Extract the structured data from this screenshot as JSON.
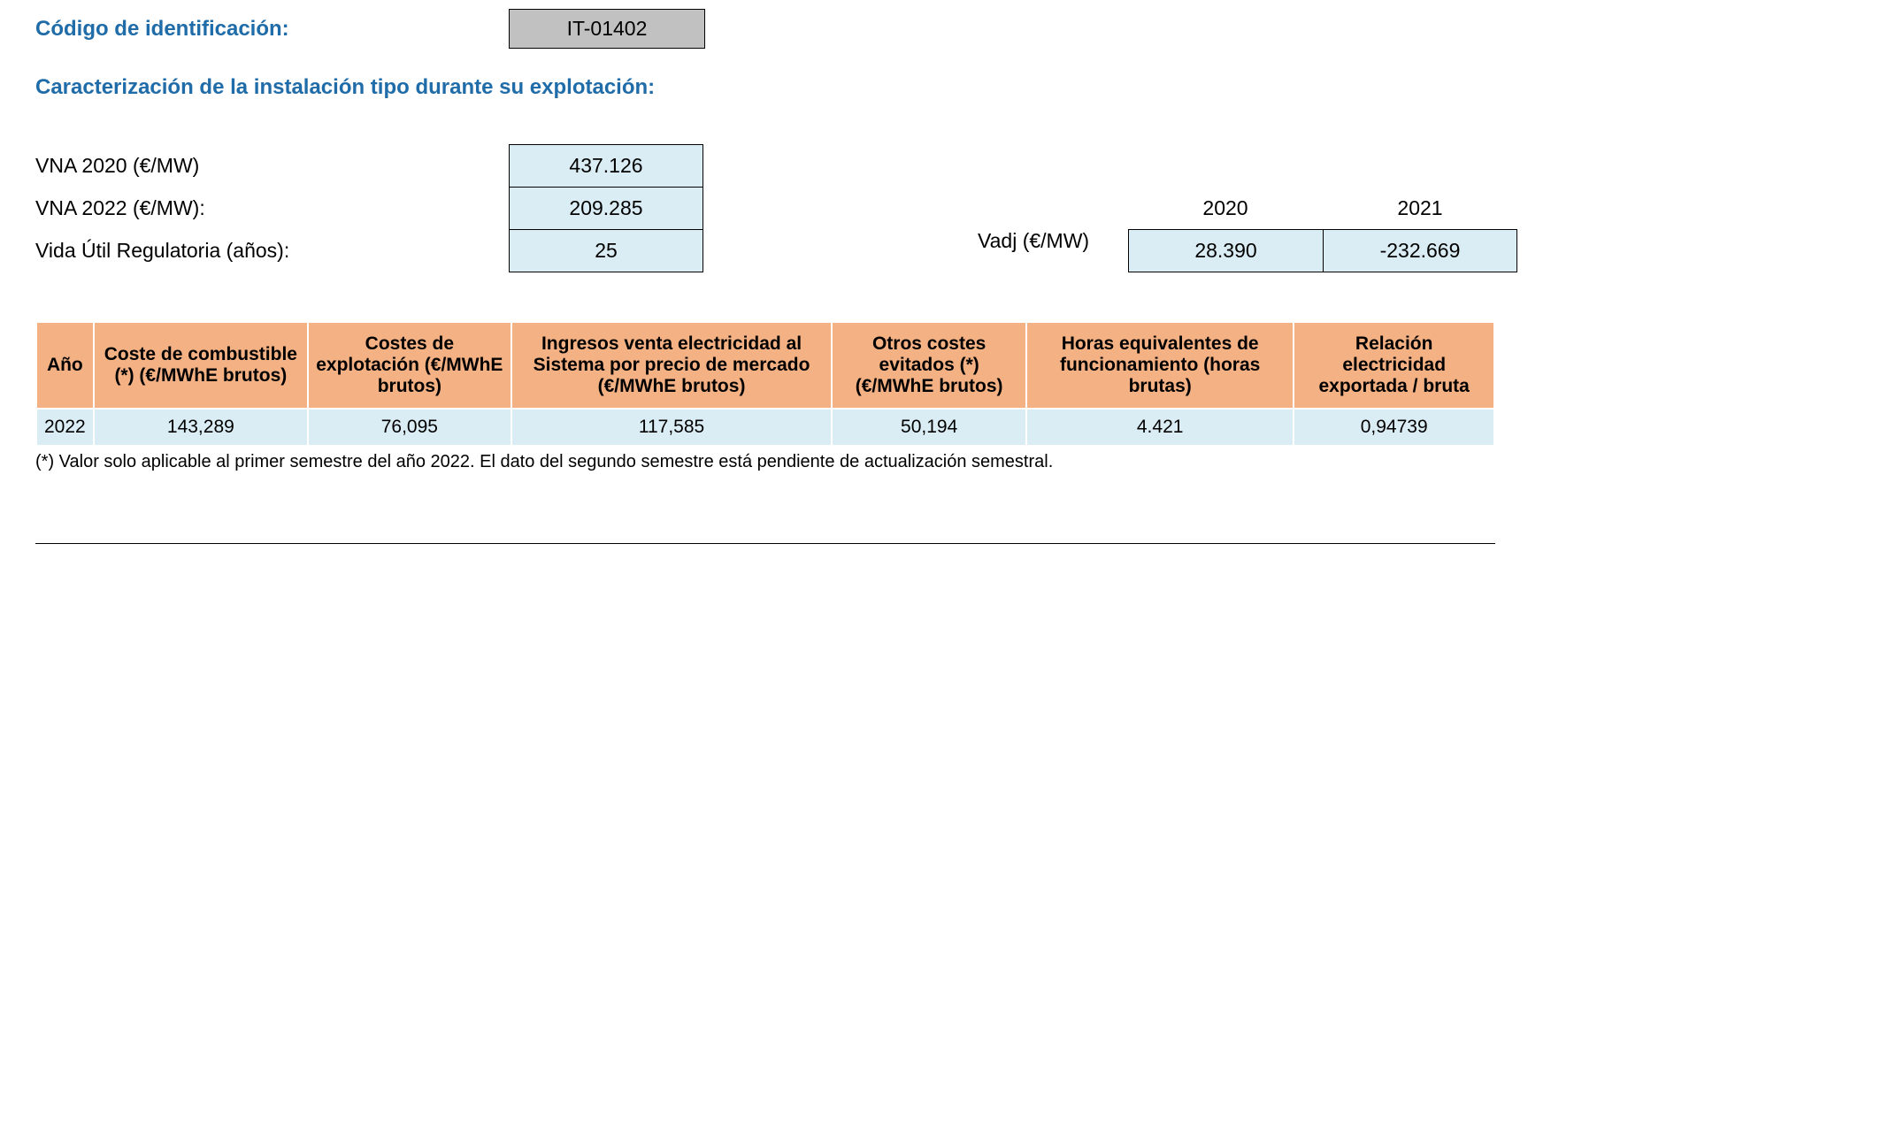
{
  "header": {
    "id_label": "Código de identificación:",
    "id_value": "IT-01402"
  },
  "section_title": "Caracterización de la instalación tipo durante su explotación:",
  "params": {
    "vna2020_label": "VNA 2020 (€/MW)",
    "vna2020_value": "437.126",
    "vna2022_label": "VNA 2022 (€/MW):",
    "vna2022_value": "209.285",
    "vida_label": "Vida Útil Regulatoria (años):",
    "vida_value": "25"
  },
  "vadj": {
    "year1": "2020",
    "year2": "2021",
    "label": "Vadj (€/MW)",
    "val1": "28.390",
    "val2": "-232.669"
  },
  "table": {
    "columns": [
      "Año",
      "Coste de combustible (*) (€/MWhE brutos)",
      "Costes de explotación (€/MWhE brutos)",
      "Ingresos venta electricidad al Sistema por precio de mercado (€/MWhE brutos)",
      "Otros costes evitados (*) (€/MWhE brutos)",
      "Horas equivalentes de funcionamiento (horas brutas)",
      "Relación electricidad exportada / bruta"
    ],
    "rows": [
      [
        "2022",
        "143,289",
        "76,095",
        "117,585",
        "50,194",
        "4.421",
        "0,94739"
      ]
    ],
    "header_bg": "#f4b183",
    "row_bg": "#daedf4"
  },
  "footnote": "(*) Valor solo aplicable al primer semestre del año 2022. El dato del segundo semestre está pendiente de actualización semestral."
}
